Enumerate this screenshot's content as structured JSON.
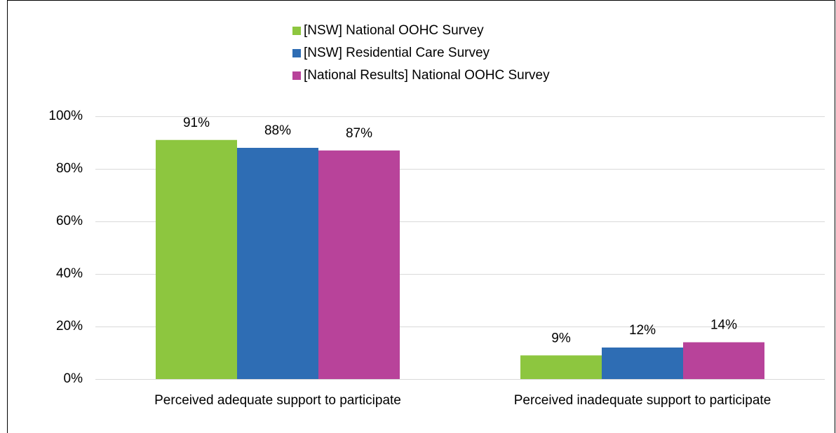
{
  "chart_data": {
    "type": "bar",
    "categories": [
      "Perceived adequate support to participate",
      "Perceived inadequate support to participate"
    ],
    "series": [
      {
        "name": "[NSW] National OOHC Survey",
        "color": "#8dc63f",
        "values": [
          91,
          9
        ],
        "value_labels": [
          "91%",
          "9%"
        ]
      },
      {
        "name": "[NSW] Residential Care Survey",
        "color": "#2e6db4",
        "values": [
          88,
          12
        ],
        "value_labels": [
          "88%",
          "12%"
        ]
      },
      {
        "name": "[National Results] National OOHC Survey",
        "color": "#b8439a",
        "values": [
          87,
          14
        ],
        "value_labels": [
          "87%",
          "14%"
        ]
      }
    ],
    "ylim": [
      0,
      100
    ],
    "yticks": [
      {
        "value": 0,
        "label": "0%"
      },
      {
        "value": 20,
        "label": "20%"
      },
      {
        "value": 40,
        "label": "40%"
      },
      {
        "value": 60,
        "label": "60%"
      },
      {
        "value": 80,
        "label": "80%"
      },
      {
        "value": 100,
        "label": "100%"
      }
    ],
    "grid": true,
    "legend": "top"
  }
}
